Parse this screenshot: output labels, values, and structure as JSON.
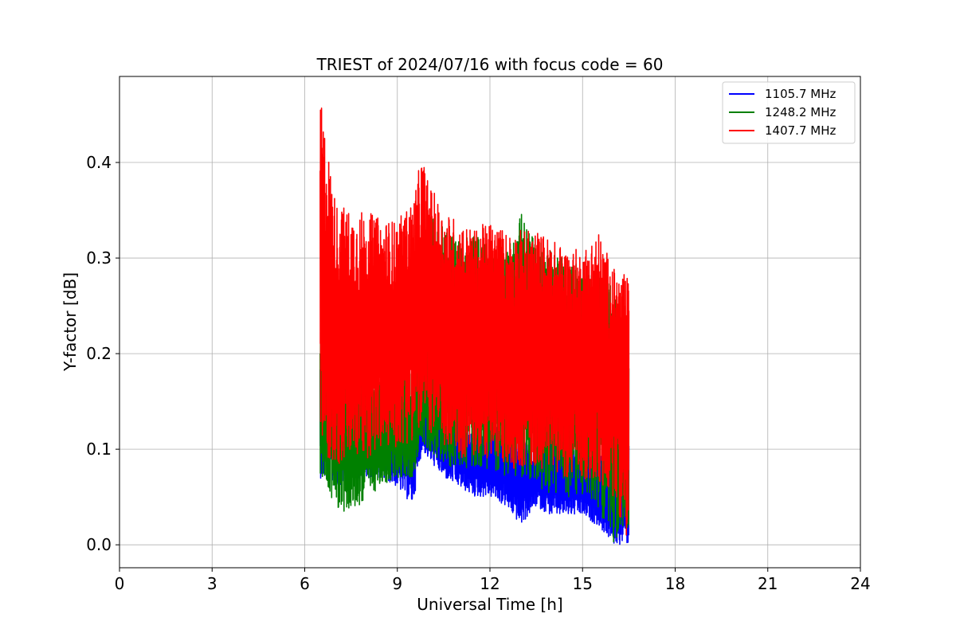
{
  "chart_data": {
    "type": "line",
    "title": "TRIEST of 2024/07/16 with focus code = 60",
    "xlabel": "Universal Time [h]",
    "ylabel": "Y-factor [dB]",
    "xlim": [
      0,
      24
    ],
    "ylim": [
      -0.024,
      0.49
    ],
    "xticks": [
      "0",
      "3",
      "6",
      "9",
      "12",
      "15",
      "18",
      "21",
      "24"
    ],
    "yticks": [
      "0.0",
      "0.1",
      "0.2",
      "0.3",
      "0.4"
    ],
    "grid": true,
    "legend_position": "top-right",
    "time_range_h": [
      6.5,
      16.5
    ],
    "series": [
      {
        "name": "1105.7 MHz",
        "color": "#0000ff",
        "x": [
          6.5,
          7.0,
          7.5,
          8.0,
          8.5,
          9.0,
          9.5,
          9.8,
          10.0,
          10.5,
          11.0,
          11.5,
          12.0,
          12.5,
          13.0,
          13.5,
          14.0,
          14.5,
          15.0,
          15.5,
          16.0,
          16.5
        ],
        "low": [
          0.07,
          0.06,
          0.07,
          0.07,
          0.07,
          0.06,
          0.04,
          0.1,
          0.09,
          0.07,
          0.06,
          0.05,
          0.05,
          0.04,
          0.02,
          0.04,
          0.03,
          0.03,
          0.03,
          0.02,
          0.0,
          0.0
        ],
        "high": [
          0.2,
          0.15,
          0.14,
          0.13,
          0.13,
          0.14,
          0.15,
          0.17,
          0.15,
          0.14,
          0.13,
          0.12,
          0.13,
          0.12,
          0.11,
          0.11,
          0.11,
          0.11,
          0.1,
          0.1,
          0.09,
          0.12
        ]
      },
      {
        "name": "1248.2 MHz",
        "color": "#008000",
        "x": [
          6.5,
          7.0,
          7.5,
          8.0,
          8.5,
          9.0,
          9.5,
          9.8,
          10.0,
          10.5,
          11.0,
          11.5,
          12.0,
          12.5,
          13.0,
          13.5,
          14.0,
          14.5,
          15.0,
          15.5,
          16.0,
          16.5
        ],
        "low": [
          0.07,
          0.04,
          0.03,
          0.05,
          0.06,
          0.07,
          0.07,
          0.1,
          0.1,
          0.08,
          0.08,
          0.08,
          0.08,
          0.07,
          0.07,
          0.06,
          0.05,
          0.05,
          0.05,
          0.04,
          0.0,
          0.02
        ],
        "high": [
          0.25,
          0.22,
          0.2,
          0.18,
          0.17,
          0.18,
          0.19,
          0.2,
          0.36,
          0.34,
          0.32,
          0.33,
          0.31,
          0.3,
          0.35,
          0.32,
          0.31,
          0.3,
          0.29,
          0.28,
          0.27,
          0.22
        ]
      },
      {
        "name": "1407.7 MHz",
        "color": "#ff0000",
        "x": [
          6.5,
          7.0,
          7.5,
          8.0,
          8.5,
          9.0,
          9.5,
          9.8,
          10.0,
          10.5,
          11.0,
          11.5,
          12.0,
          12.5,
          13.0,
          13.5,
          14.0,
          14.5,
          15.0,
          15.5,
          16.0,
          16.5
        ],
        "low": [
          0.1,
          0.08,
          0.09,
          0.09,
          0.1,
          0.1,
          0.11,
          0.12,
          0.12,
          0.1,
          0.09,
          0.09,
          0.09,
          0.08,
          0.08,
          0.08,
          0.08,
          0.07,
          0.07,
          0.06,
          0.05,
          0.0
        ],
        "high": [
          0.47,
          0.36,
          0.35,
          0.35,
          0.34,
          0.34,
          0.36,
          0.41,
          0.38,
          0.35,
          0.34,
          0.33,
          0.34,
          0.33,
          0.33,
          0.33,
          0.32,
          0.31,
          0.31,
          0.33,
          0.29,
          0.28
        ]
      }
    ]
  }
}
